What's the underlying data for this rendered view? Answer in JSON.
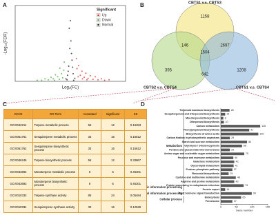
{
  "panels": [
    "A",
    "B",
    "C",
    "D"
  ],
  "chart_data": [
    {
      "type": "scatter",
      "xlabel": "Log₂(FC)",
      "ylabel": "-Log₁₀(FDR)",
      "legend_title": "Significant",
      "xlim": [
        -10,
        10
      ],
      "ylim": [
        0,
        15
      ],
      "series": [
        {
          "name": "Up",
          "color": "#e0342c",
          "x": [
            1.2,
            1.5,
            1.8,
            2.1,
            2.5,
            2.8,
            3.2,
            3.6,
            4.1,
            4.5,
            5.0,
            5.6,
            6.2,
            7.0,
            1.4,
            2.2,
            3.0,
            1.1
          ],
          "values": [
            2.5,
            3.1,
            1.2,
            2.0,
            0.8,
            1.6,
            0.6,
            1.1,
            0.4,
            0.9,
            0.3,
            0.5,
            0.2,
            0.3,
            0.9,
            0.5,
            0.3,
            4.5
          ]
        },
        {
          "name": "Down",
          "color": "#4caf3a",
          "x": [
            -1.2,
            -1.6,
            -1.9,
            -2.3,
            -2.7,
            -3.1,
            -3.5,
            -4.0,
            -4.6,
            -5.2,
            -6.0,
            -1.4,
            -2.0,
            -2.9,
            -1.1
          ],
          "values": [
            2.2,
            1.5,
            2.6,
            0.9,
            1.3,
            0.5,
            0.8,
            0.3,
            0.5,
            0.2,
            0.2,
            0.7,
            0.4,
            0.2,
            3.8
          ]
        },
        {
          "name": "Normal",
          "color": "#222222",
          "x": [
            -0.8,
            -0.5,
            -0.3,
            -0.1,
            0.1,
            0.3,
            0.5,
            0.8,
            -0.6,
            0.6,
            -0.2,
            0.2,
            0,
            -0.4,
            0.4
          ],
          "values": [
            0.5,
            1.2,
            3.0,
            6.5,
            8.0,
            4.2,
            1.5,
            0.6,
            0.3,
            0.2,
            10.5,
            5.5,
            12.0,
            2.0,
            2.8
          ]
        }
      ]
    },
    {
      "type": "bar",
      "orientation": "horizontal",
      "xlabel": "Gene number",
      "color": "#595959",
      "xlim": [
        0,
        150
      ],
      "xticks": [
        0,
        50,
        100,
        150
      ],
      "groups": [
        {
          "name": "Metabolism",
          "categories": [
            "Terpenoid backbone biosynthesis",
            "Sesquiterpenoid and triterpenoid biosynthesis",
            "Monoterpenoid biosynthesis",
            "Diterpenoid biosynthesis",
            "Carbon metabolism",
            "Phenylpropanoid biosynthesis",
            "Biosynthesis of amino acids",
            "Carbon fixation in photosynthetic organisms",
            "Starch and sucrose metabolism",
            "Glycolysis / Gluconeogenesis",
            "Pentose and glucuronate interconversions",
            "Amino sugar and nucleotide sugar metabolism",
            "Fructose and mannose metabolism",
            "Galactose metabolism",
            "Glycerolipid metabolism",
            "Pentose phosphate pathway",
            "Flavonoid biosynthesis",
            "Cysteine and methionine metabolism",
            "Arginine and proline metabolism"
          ],
          "values": [
            28,
            14,
            8,
            10,
            126,
            91,
            120,
            29,
            84,
            68,
            29,
            75,
            40,
            43,
            41,
            37,
            25,
            48,
            43
          ]
        },
        {
          "name": "Genetic information processing",
          "categories": [
            "Protein processing in endoplasmic reticulum",
            "Protein export"
          ],
          "values": [
            73,
            14
          ]
        },
        {
          "name": "Environmental information processing",
          "categories": [
            "Plant hormone signal transduction"
          ],
          "values": [
            99
          ]
        },
        {
          "name": "Cellular process",
          "categories": [
            "Endocytosis",
            "Peroxisome"
          ],
          "values": [
            65,
            37
          ]
        }
      ]
    }
  ],
  "venn": {
    "sets": [
      "CBTS1 v.s. CBTS3",
      "CBTS2 v.s. CBTS4",
      "CBTS1 v.s. CBTS4"
    ],
    "colors": [
      "#f2e27a",
      "#b5d98a",
      "#8fb9dd"
    ],
    "regions": [
      1158,
      146,
      2697,
      1504,
      395,
      642,
      1208
    ]
  },
  "table": {
    "columns": [
      "GO ID",
      "GO Term",
      "Annotated",
      "Significant",
      "KS"
    ],
    "rows": [
      [
        "GO:0042214",
        "Terpene metabolic process",
        56,
        12,
        0.16283
      ],
      [
        "GO:0051761",
        "Sesquiterpene metabolic process",
        33,
        16,
        0.15612
      ],
      [
        "GO:0051762",
        "Sesquiterpene biosynthetic process",
        33,
        16,
        0.15612
      ],
      [
        "GO:0046246",
        "Terpene biosynthetic process",
        56,
        12,
        0.33867
      ],
      [
        "GO:0043692",
        "Monoterpene metabolic process",
        9,
        6,
        0.46301
      ],
      [
        "GO:0043693",
        "Monoterpene biosynthetic process",
        9,
        6,
        0.46301
      ],
      [
        "GO:0010333",
        "Terpene synthase activity",
        85,
        24,
        0.05484
      ],
      [
        "GO:0010334",
        "Sesquiterpene synthase activity",
        33,
        16,
        0.12528
      ]
    ]
  }
}
